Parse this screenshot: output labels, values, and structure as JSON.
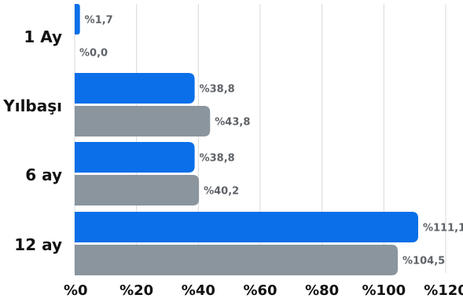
{
  "chart_data": {
    "type": "bar",
    "orientation": "horizontal",
    "categories": [
      "1 Ay",
      "Yılbaşı",
      "6 ay",
      "12 ay"
    ],
    "series": [
      {
        "values": [
          1.7,
          38.8,
          38.8,
          111.1
        ],
        "color": "#0a6fe8"
      },
      {
        "values": [
          0.0,
          43.8,
          40.2,
          104.5
        ],
        "color": "#8a959e"
      }
    ],
    "data_labels": [
      [
        "%1,7",
        "%38,8",
        "%38,8",
        "%111,1"
      ],
      [
        "%0,0",
        "%43,8",
        "%40,2",
        "%104,5"
      ]
    ],
    "xlim": [
      0,
      120
    ],
    "x_ticks": [
      0,
      20,
      40,
      60,
      80,
      100,
      120
    ],
    "x_tick_labels": [
      "%0",
      "%20",
      "%40",
      "%60",
      "%80",
      "%100",
      "%120"
    ],
    "grid": "vertical",
    "legend": "none"
  }
}
